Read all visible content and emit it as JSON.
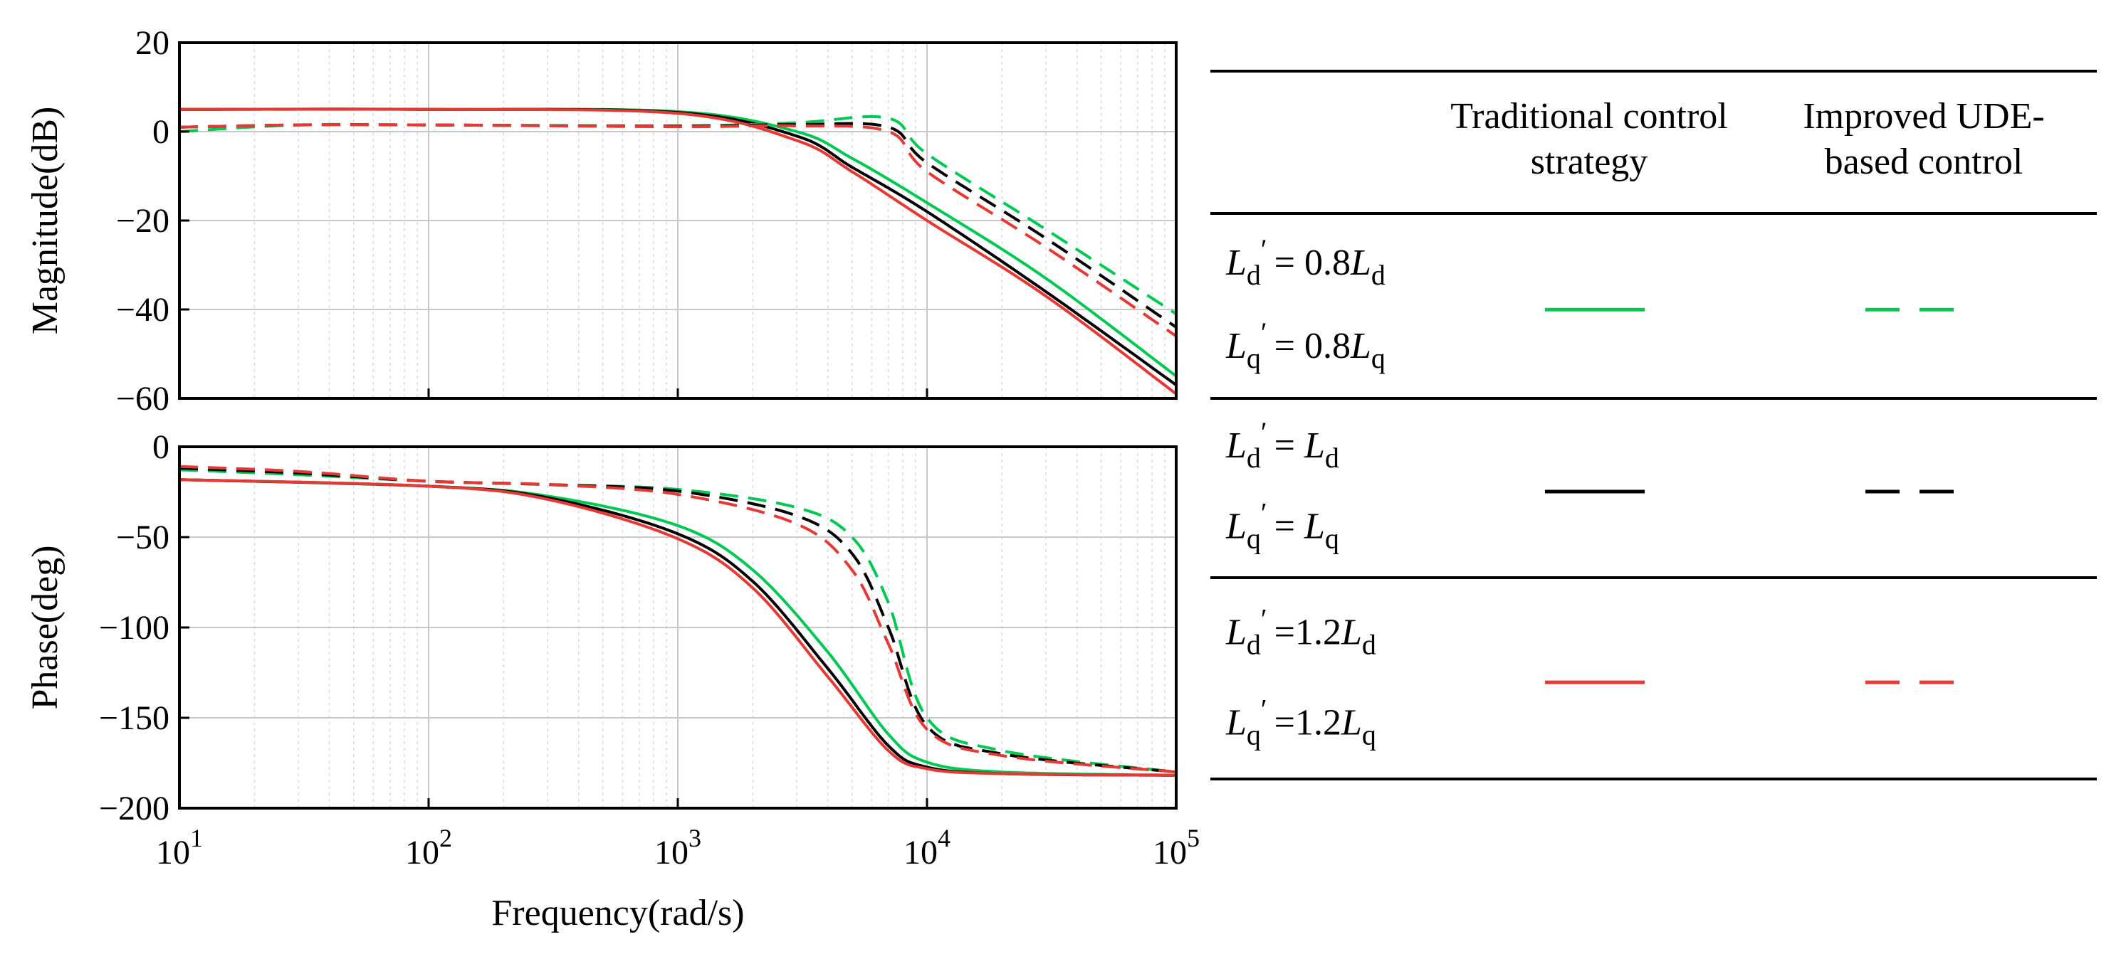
{
  "chart_data": [
    {
      "type": "line",
      "panel": "magnitude",
      "xscale": "log",
      "xlim": [
        10,
        100000
      ],
      "ylim": [
        -60,
        20
      ],
      "ylabel": "Magnitude(dB)",
      "xlabel": "",
      "grid": true,
      "yticks": [
        "20",
        "0",
        "−20",
        "−40",
        "−60"
      ],
      "series": [
        {
          "style": "solid",
          "color": "#00c853",
          "x": [
            10,
            100,
            1000,
            3000,
            5000,
            10000,
            30000,
            100000
          ],
          "y": [
            5,
            5,
            4.5,
            0,
            -6,
            -16,
            -33,
            -55
          ]
        },
        {
          "style": "solid",
          "color": "#000000",
          "x": [
            10,
            100,
            1000,
            3000,
            5000,
            10000,
            30000,
            100000
          ],
          "y": [
            5,
            5,
            4.3,
            -1,
            -8,
            -18,
            -36,
            -57
          ]
        },
        {
          "style": "solid",
          "color": "#e53935",
          "x": [
            10,
            100,
            1000,
            3000,
            5000,
            10000,
            30000,
            100000
          ],
          "y": [
            5,
            5,
            4.1,
            -2,
            -9,
            -20,
            -37,
            -59
          ]
        },
        {
          "style": "dashed",
          "color": "#00c853",
          "x": [
            10,
            30,
            100,
            1000,
            3000,
            7000,
            10000,
            30000,
            100000
          ],
          "y": [
            0,
            1.5,
            1.5,
            1.3,
            2,
            3,
            -5,
            -22,
            -41
          ]
        },
        {
          "style": "dashed",
          "color": "#000000",
          "x": [
            10,
            30,
            100,
            1000,
            3000,
            7000,
            10000,
            30000,
            100000
          ],
          "y": [
            1,
            1.5,
            1.5,
            1.2,
            1.6,
            1,
            -7,
            -24,
            -44
          ]
        },
        {
          "style": "dashed",
          "color": "#e53935",
          "x": [
            10,
            30,
            100,
            1000,
            3000,
            7000,
            10000,
            30000,
            100000
          ],
          "y": [
            1,
            1.5,
            1.5,
            1.1,
            1.3,
            0,
            -9,
            -26,
            -46
          ]
        }
      ]
    },
    {
      "type": "line",
      "panel": "phase",
      "xscale": "log",
      "xlim": [
        10,
        100000
      ],
      "ylim": [
        -200,
        20
      ],
      "ylabel": "Phase(deg)",
      "xlabel": "Frequency(rad/s)",
      "grid": true,
      "yticks": [
        "0",
        "−50",
        "−100",
        "−150",
        "−200"
      ],
      "xticks": [
        {
          "base": "10",
          "exp": "1"
        },
        {
          "base": "10",
          "exp": "2"
        },
        {
          "base": "10",
          "exp": "3"
        },
        {
          "base": "10",
          "exp": "4"
        },
        {
          "base": "10",
          "exp": "5"
        }
      ],
      "series": [
        {
          "style": "solid",
          "color": "#00c853",
          "x": [
            10,
            100,
            300,
            1000,
            2000,
            4000,
            7000,
            10000,
            20000,
            100000
          ],
          "y": [
            0,
            -4,
            -10,
            -28,
            -55,
            -105,
            -155,
            -172,
            -178,
            -180
          ]
        },
        {
          "style": "solid",
          "color": "#000000",
          "x": [
            10,
            100,
            300,
            1000,
            2000,
            4000,
            7000,
            10000,
            20000,
            100000
          ],
          "y": [
            0,
            -4,
            -11,
            -33,
            -62,
            -115,
            -162,
            -175,
            -179,
            -180
          ]
        },
        {
          "style": "solid",
          "color": "#e53935",
          "x": [
            10,
            100,
            300,
            1000,
            2000,
            4000,
            7000,
            10000,
            20000,
            100000
          ],
          "y": [
            0,
            -4,
            -12,
            -36,
            -66,
            -120,
            -165,
            -176,
            -179,
            -180
          ]
        },
        {
          "style": "dashed",
          "color": "#00c853",
          "x": [
            10,
            30,
            100,
            300,
            1000,
            3000,
            5000,
            7000,
            10000,
            20000,
            100000
          ],
          "y": [
            6,
            3,
            -1,
            -3,
            -6,
            -17,
            -35,
            -75,
            -145,
            -165,
            -178
          ]
        },
        {
          "style": "dashed",
          "color": "#000000",
          "x": [
            10,
            30,
            100,
            300,
            1000,
            3000,
            5000,
            7000,
            10000,
            20000,
            100000
          ],
          "y": [
            7,
            4,
            -1,
            -3,
            -7,
            -22,
            -45,
            -90,
            -150,
            -167,
            -178
          ]
        },
        {
          "style": "dashed",
          "color": "#e53935",
          "x": [
            10,
            30,
            100,
            300,
            1000,
            3000,
            5000,
            7000,
            10000,
            20000,
            100000
          ],
          "y": [
            8,
            5,
            -1,
            -3,
            -9,
            -27,
            -55,
            -100,
            -152,
            -168,
            -178
          ]
        }
      ]
    }
  ],
  "legend_table": {
    "headers": [
      "Traditional control strategy",
      "Improved UDE-based control"
    ],
    "rows": [
      {
        "ld_lhs": "L",
        "ld_sub": "d",
        "ld_rhs": "= 0.8",
        "ld_rhs_var": "L",
        "ld_rhs_sub": "d",
        "lq_lhs": "L",
        "lq_sub": "q",
        "lq_rhs": "= 0.8",
        "lq_rhs_var": "L",
        "lq_rhs_sub": "q",
        "color": "#00c853"
      },
      {
        "ld_lhs": "L",
        "ld_sub": "d",
        "ld_rhs": "= ",
        "ld_rhs_var": "L",
        "ld_rhs_sub": "d",
        "lq_lhs": "L",
        "lq_sub": "q",
        "lq_rhs": "= ",
        "lq_rhs_var": "L",
        "lq_rhs_sub": "q",
        "color": "#000000"
      },
      {
        "ld_lhs": "L",
        "ld_sub": "d",
        "ld_rhs": "=1.2",
        "ld_rhs_var": "L",
        "ld_rhs_sub": "d",
        "lq_lhs": "L",
        "lq_sub": "q",
        "lq_rhs": "=1.2",
        "lq_rhs_var": "L",
        "lq_rhs_sub": "q",
        "color": "#e53935"
      }
    ]
  }
}
